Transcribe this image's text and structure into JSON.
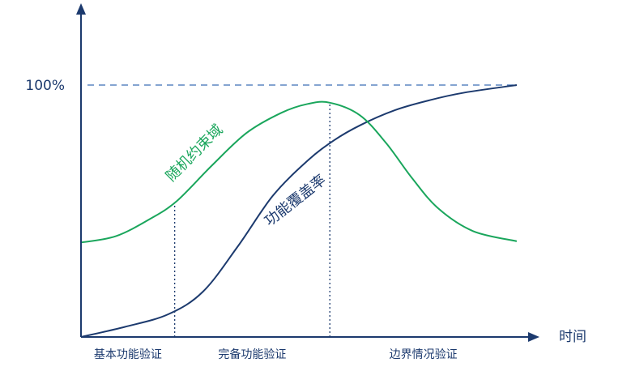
{
  "chart_data": {
    "type": "line",
    "title": "",
    "xlabel": "时间",
    "ylabel": "",
    "x_domain": [
      0,
      100
    ],
    "y_domain": [
      0,
      100
    ],
    "reference_line": {
      "label": "100%",
      "value": 100,
      "style": "dashed"
    },
    "phases": [
      {
        "name": "基本功能验证",
        "start": 0,
        "end": 21.5
      },
      {
        "name": "完备功能验证",
        "start": 21.5,
        "end": 57.1
      },
      {
        "name": "边界情况验证",
        "start": 57.1,
        "end": 100
      }
    ],
    "phase_boundaries": [
      21.5,
      57.1
    ],
    "series": [
      {
        "name": "功能覆盖率",
        "color": "#1c3a6e",
        "x": [
          0,
          10,
          20,
          28,
          36,
          44,
          52,
          58,
          64,
          72,
          80,
          88,
          100
        ],
        "y": [
          0,
          4,
          9,
          18,
          36,
          56,
          70,
          78,
          84,
          90,
          94,
          97,
          100
        ]
      },
      {
        "name": "随机约束域",
        "color": "#1aa65c",
        "x": [
          0,
          8,
          16,
          22,
          30,
          38,
          46,
          52,
          57.1,
          64,
          70,
          76,
          82,
          90,
          100
        ],
        "y": [
          37.5,
          40,
          47,
          54,
          68,
          81,
          89,
          92.5,
          93,
          88,
          77,
          63,
          51,
          42,
          38
        ]
      }
    ]
  }
}
